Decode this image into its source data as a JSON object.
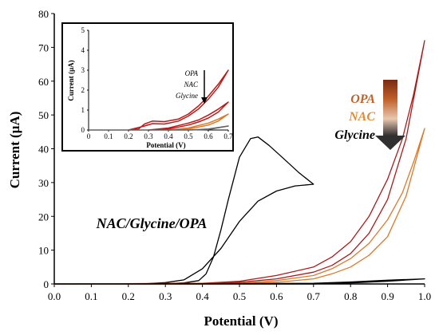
{
  "chart_data": [
    {
      "type": "line",
      "xlabel": "Potential (V)",
      "ylabel": "Current (µA)",
      "xlim": [
        0.0,
        1.0
      ],
      "ylim": [
        0,
        80
      ],
      "x_ticks": [
        "0.0",
        "0.1",
        "0.2",
        "0.3",
        "0.4",
        "0.5",
        "0.6",
        "0.7",
        "0.8",
        "0.9",
        "1.0"
      ],
      "y_ticks": [
        "0",
        "10",
        "20",
        "30",
        "40",
        "50",
        "60",
        "70",
        "80"
      ],
      "grid": false,
      "annotations": {
        "mixture_label": "NAC/Glycine/OPA",
        "legend_items": [
          {
            "text": "OPA",
            "color": "#c0622a"
          },
          {
            "text": "NAC",
            "color": "#e08a3a"
          },
          {
            "text": "Glycine",
            "color": "#000000"
          }
        ]
      },
      "series": [
        {
          "color": "#000000",
          "cyclic": true,
          "forward": [
            [
              0.0,
              0
            ],
            [
              0.25,
              0.1
            ],
            [
              0.3,
              0.4
            ],
            [
              0.35,
              1.2
            ],
            [
              0.4,
              4.5
            ],
            [
              0.45,
              10.5
            ],
            [
              0.5,
              18.5
            ],
            [
              0.55,
              24.5
            ],
            [
              0.6,
              27.5
            ],
            [
              0.65,
              29
            ],
            [
              0.7,
              29.5
            ]
          ],
          "reverse": [
            [
              0.7,
              29.5
            ],
            [
              0.66,
              33
            ],
            [
              0.62,
              37
            ],
            [
              0.58,
              41
            ],
            [
              0.55,
              43.5
            ],
            [
              0.53,
              43
            ],
            [
              0.5,
              37.5
            ],
            [
              0.47,
              25
            ],
            [
              0.45,
              16
            ],
            [
              0.43,
              8
            ],
            [
              0.41,
              3
            ],
            [
              0.39,
              1
            ],
            [
              0.35,
              0.3
            ],
            [
              0.3,
              0.1
            ],
            [
              0.0,
              0
            ]
          ]
        },
        {
          "color": "#b01818",
          "cyclic": true,
          "forward": [
            [
              0.0,
              0
            ],
            [
              0.4,
              0
            ],
            [
              0.5,
              0.5
            ],
            [
              0.6,
              1.5
            ],
            [
              0.7,
              3.5
            ],
            [
              0.75,
              5.5
            ],
            [
              0.8,
              9
            ],
            [
              0.85,
              15
            ],
            [
              0.9,
              25
            ],
            [
              0.95,
              43
            ],
            [
              1.0,
              72
            ]
          ],
          "reverse": [
            [
              1.0,
              72
            ],
            [
              0.97,
              56
            ],
            [
              0.94,
              43
            ],
            [
              0.9,
              31
            ],
            [
              0.85,
              20
            ],
            [
              0.8,
              12.5
            ],
            [
              0.75,
              8
            ],
            [
              0.7,
              5
            ],
            [
              0.6,
              2.5
            ],
            [
              0.5,
              0.8
            ],
            [
              0.4,
              0.2
            ],
            [
              0.0,
              0
            ]
          ]
        },
        {
          "color": "#e07828",
          "cyclic": true,
          "forward": [
            [
              0.0,
              0
            ],
            [
              0.5,
              0
            ],
            [
              0.6,
              0.5
            ],
            [
              0.7,
              1.5
            ],
            [
              0.75,
              3
            ],
            [
              0.8,
              5
            ],
            [
              0.85,
              8.5
            ],
            [
              0.9,
              14
            ],
            [
              0.95,
              26
            ],
            [
              1.0,
              46
            ]
          ],
          "reverse": [
            [
              1.0,
              46
            ],
            [
              0.97,
              36
            ],
            [
              0.94,
              27
            ],
            [
              0.9,
              19
            ],
            [
              0.85,
              12
            ],
            [
              0.8,
              7.5
            ],
            [
              0.75,
              4.5
            ],
            [
              0.7,
              2.5
            ],
            [
              0.6,
              1
            ],
            [
              0.5,
              0.2
            ],
            [
              0.0,
              0
            ]
          ]
        },
        {
          "color": "#000000",
          "cyclic": true,
          "forward": [
            [
              0.0,
              0
            ],
            [
              0.7,
              0
            ],
            [
              0.8,
              0.3
            ],
            [
              0.9,
              0.8
            ],
            [
              1.0,
              1.5
            ]
          ],
          "reverse": [
            [
              1.0,
              1.5
            ],
            [
              0.9,
              1.1
            ],
            [
              0.8,
              0.6
            ],
            [
              0.7,
              0.2
            ],
            [
              0.0,
              0
            ]
          ]
        }
      ]
    },
    {
      "type": "line",
      "xlabel": "Potential (V)",
      "ylabel": "Current (µA)",
      "xlim": [
        0,
        0.7
      ],
      "ylim": [
        0,
        5
      ],
      "x_ticks": [
        "0",
        "0.1",
        "0.2",
        "0.3",
        "0.4",
        "0.5",
        "0.6",
        "0.7"
      ],
      "y_ticks": [
        "0",
        "1",
        "2",
        "3",
        "4",
        "5"
      ],
      "grid": false,
      "annotations": {
        "legend_items": [
          "OPA",
          "NAC",
          "Glycine"
        ]
      },
      "series": [
        {
          "color": "#c01818",
          "forward": [
            [
              0.2,
              0
            ],
            [
              0.25,
              0.05
            ],
            [
              0.28,
              0.3
            ],
            [
              0.32,
              0.45
            ],
            [
              0.38,
              0.42
            ],
            [
              0.45,
              0.55
            ],
            [
              0.5,
              0.8
            ],
            [
              0.55,
              1.2
            ],
            [
              0.6,
              1.7
            ],
            [
              0.65,
              2.3
            ],
            [
              0.7,
              3.0
            ]
          ],
          "reverse": [
            [
              0.7,
              3.0
            ],
            [
              0.65,
              2.15
            ],
            [
              0.6,
              1.55
            ],
            [
              0.55,
              1.05
            ],
            [
              0.5,
              0.7
            ],
            [
              0.45,
              0.45
            ],
            [
              0.38,
              0.3
            ],
            [
              0.32,
              0.32
            ],
            [
              0.28,
              0.2
            ],
            [
              0.2,
              0
            ]
          ]
        },
        {
          "color": "#c01818",
          "forward": [
            [
              0.3,
              0
            ],
            [
              0.4,
              0.1
            ],
            [
              0.5,
              0.35
            ],
            [
              0.55,
              0.5
            ],
            [
              0.6,
              0.75
            ],
            [
              0.65,
              1.05
            ],
            [
              0.7,
              1.4
            ]
          ],
          "reverse": [
            [
              0.7,
              1.4
            ],
            [
              0.65,
              0.9
            ],
            [
              0.6,
              0.6
            ],
            [
              0.55,
              0.4
            ],
            [
              0.5,
              0.25
            ],
            [
              0.4,
              0.05
            ],
            [
              0.3,
              0
            ]
          ]
        },
        {
          "color": "#e07828",
          "forward": [
            [
              0.4,
              0
            ],
            [
              0.5,
              0.1
            ],
            [
              0.6,
              0.35
            ],
            [
              0.65,
              0.55
            ],
            [
              0.7,
              0.8
            ]
          ],
          "reverse": [
            [
              0.7,
              0.8
            ],
            [
              0.65,
              0.45
            ],
            [
              0.6,
              0.25
            ],
            [
              0.5,
              0.05
            ],
            [
              0.4,
              0
            ]
          ]
        },
        {
          "color": "#606060",
          "forward": [
            [
              0.0,
              0
            ],
            [
              0.5,
              0
            ],
            [
              0.6,
              0.05
            ],
            [
              0.7,
              0.2
            ]
          ],
          "reverse": [
            [
              0.7,
              0.2
            ],
            [
              0.6,
              0.03
            ],
            [
              0.5,
              0
            ],
            [
              0.0,
              0
            ]
          ]
        }
      ]
    }
  ]
}
